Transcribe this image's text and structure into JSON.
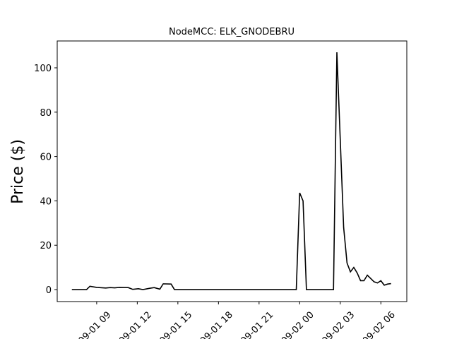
{
  "chart_data": {
    "type": "line",
    "title": "NodeMCC: ELK_GNODEBRU",
    "ylabel": "Price ($)",
    "x": [
      "09-01 07:10",
      "09-01 08:15",
      "09-01 08:30",
      "09-01 09:00",
      "09-01 09:40",
      "09-01 10:00",
      "09-01 10:20",
      "09-01 10:40",
      "09-01 11:20",
      "09-01 11:40",
      "09-01 12:05",
      "09-01 12:25",
      "09-01 12:55",
      "09-01 13:15",
      "09-01 13:40",
      "09-01 13:55",
      "09-01 14:30",
      "09-01 14:45",
      "09-01 23:45",
      "09-02 00:00",
      "09-02 00:15",
      "09-02 00:30",
      "09-02 02:30",
      "09-02 02:45",
      "09-02 03:15",
      "09-02 03:30",
      "09-02 03:45",
      "09-02 04:00",
      "09-02 04:15",
      "09-02 04:30",
      "09-02 04:45",
      "09-02 05:00",
      "09-02 05:15",
      "09-02 05:30",
      "09-02 05:45",
      "09-02 06:00",
      "09-02 06:15",
      "09-02 06:30",
      "09-02 06:45"
    ],
    "series": [
      {
        "name": "Price",
        "color": "#000000",
        "values": [
          0,
          0,
          1.5,
          1.0,
          0.7,
          0.9,
          0.8,
          1.0,
          0.9,
          0.1,
          0.4,
          0.0,
          0.6,
          0.9,
          0.2,
          2.6,
          2.5,
          0,
          0,
          43.6,
          40,
          0,
          0,
          107,
          28,
          12,
          8,
          10,
          7.5,
          4,
          4,
          6.5,
          5,
          3.5,
          3,
          4,
          2,
          2.5,
          2.7
        ]
      }
    ],
    "xlim": [
      "09-01 06:05",
      "09-02 07:55"
    ],
    "xticks": [
      {
        "value": "09-01 09:00",
        "label": "09-01 09"
      },
      {
        "value": "09-01 12:00",
        "label": "09-01 12"
      },
      {
        "value": "09-01 15:00",
        "label": "09-01 15"
      },
      {
        "value": "09-01 18:00",
        "label": "09-01 18"
      },
      {
        "value": "09-01 21:00",
        "label": "09-01 21"
      },
      {
        "value": "09-02 00:00",
        "label": "09-02 00"
      },
      {
        "value": "09-02 03:00",
        "label": "09-02 03"
      },
      {
        "value": "09-02 06:00",
        "label": "09-02 06"
      }
    ],
    "ylim": [
      -5.4,
      112.1
    ],
    "yticks": [
      0,
      20,
      40,
      60,
      80,
      100
    ]
  }
}
